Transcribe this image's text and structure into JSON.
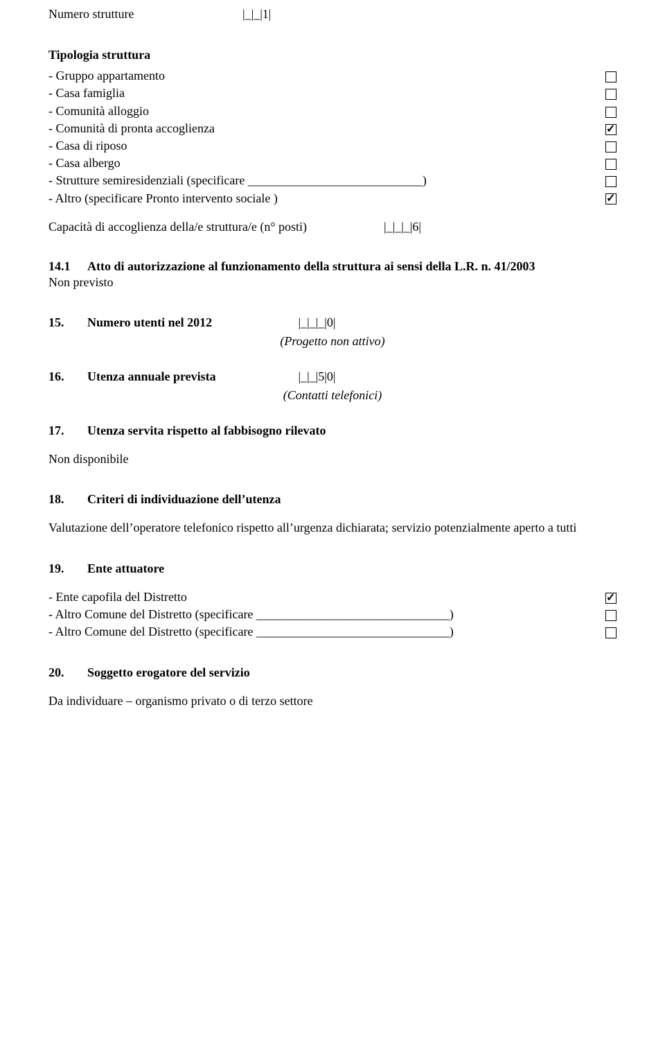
{
  "header": {
    "numero_strutture_label": "Numero strutture",
    "numero_strutture_value": "|_|_|1|"
  },
  "tipologia": {
    "title": "Tipologia struttura",
    "items": [
      {
        "label": "Gruppo appartamento",
        "checked": false
      },
      {
        "label": "Casa famiglia",
        "checked": false
      },
      {
        "label": "Comunità alloggio",
        "checked": false
      },
      {
        "label": "Comunità di pronta accoglienza",
        "checked": true
      },
      {
        "label": "Casa di riposo",
        "checked": false
      },
      {
        "label": "Casa albergo",
        "checked": false
      },
      {
        "label": "Strutture semiresidenziali (specificare ____________________________)",
        "checked": false
      },
      {
        "label": "Altro (specificare Pronto intervento sociale )",
        "checked": true
      }
    ]
  },
  "capacita": {
    "label": "Capacità di accoglienza della/e struttura/e (n° posti)",
    "value": "|_|_|_|6|"
  },
  "s14_1": {
    "num": "14.1",
    "title": "Atto di autorizzazione al funzionamento della struttura ai sensi della L.R. n. 41/2003",
    "body": "Non previsto"
  },
  "s15": {
    "num": "15.",
    "title": "Numero utenti nel 2012",
    "value": "|_|_|_|0|",
    "note": "(Progetto non attivo)"
  },
  "s16": {
    "num": "16.",
    "title": "Utenza annuale prevista",
    "value": "|_|_|5|0|",
    "note": "(Contatti telefonici)"
  },
  "s17": {
    "num": "17.",
    "title": "Utenza servita rispetto al fabbisogno rilevato",
    "body": "Non disponibile"
  },
  "s18": {
    "num": "18.",
    "title": "Criteri di individuazione dell’utenza",
    "body": "Valutazione dell’operatore telefonico rispetto all’urgenza dichiarata; servizio potenzialmente aperto a tutti"
  },
  "s19": {
    "num": "19.",
    "title": "Ente attuatore",
    "items": [
      {
        "label": "Ente capofila del Distretto",
        "checked": true
      },
      {
        "label": "Altro Comune del Distretto (specificare _______________________________)",
        "checked": false
      },
      {
        "label": "Altro Comune del Distretto (specificare _______________________________)",
        "checked": false
      }
    ]
  },
  "s20": {
    "num": "20.",
    "title": "Soggetto erogatore del servizio",
    "body": "Da individuare – organismo privato o di terzo settore"
  }
}
